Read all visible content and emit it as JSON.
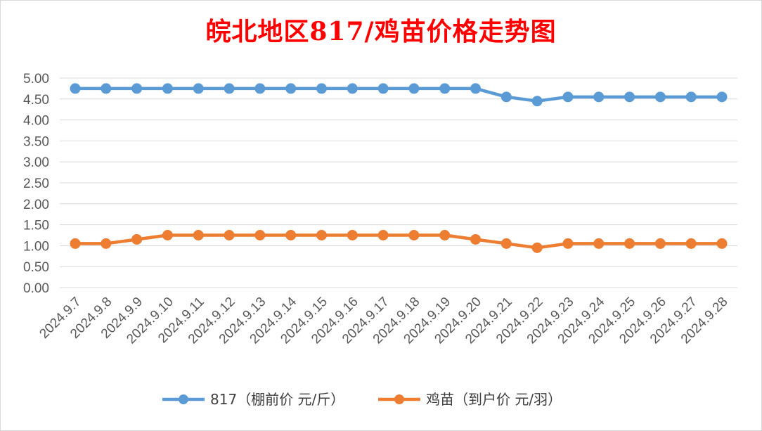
{
  "chart_data": {
    "type": "line",
    "title": "皖北地区817/鸡苗价格走势图",
    "categories": [
      "2024.9.7",
      "2024.9.8",
      "2024.9.9",
      "2024.9.10",
      "2024.9.11",
      "2024.9.12",
      "2024.9.13",
      "2024.9.14",
      "2024.9.15",
      "2024.9.16",
      "2024.9.17",
      "2024.9.18",
      "2024.9.19",
      "2024.9.20",
      "2024.9.21",
      "2024.9.22",
      "2024.9.23",
      "2024.9.24",
      "2024.9.25",
      "2024.9.26",
      "2024.9.27",
      "2024.9.28"
    ],
    "series": [
      {
        "name": "817（棚前价 元/斤）",
        "color": "#5b9bd5",
        "values": [
          4.75,
          4.75,
          4.75,
          4.75,
          4.75,
          4.75,
          4.75,
          4.75,
          4.75,
          4.75,
          4.75,
          4.75,
          4.75,
          4.75,
          4.55,
          4.45,
          4.55,
          4.55,
          4.55,
          4.55,
          4.55,
          4.55
        ]
      },
      {
        "name": "鸡苗（到户价 元/羽）",
        "color": "#ed7d31",
        "values": [
          1.05,
          1.05,
          1.15,
          1.25,
          1.25,
          1.25,
          1.25,
          1.25,
          1.25,
          1.25,
          1.25,
          1.25,
          1.25,
          1.15,
          1.05,
          0.95,
          1.05,
          1.05,
          1.05,
          1.05,
          1.05,
          1.05
        ]
      }
    ],
    "ylim": [
      0,
      5
    ],
    "yticks": [
      "0.00",
      "0.50",
      "1.00",
      "1.50",
      "2.00",
      "2.50",
      "3.00",
      "3.50",
      "4.00",
      "4.50",
      "5.00"
    ],
    "grid": true,
    "legend": "bottom"
  }
}
